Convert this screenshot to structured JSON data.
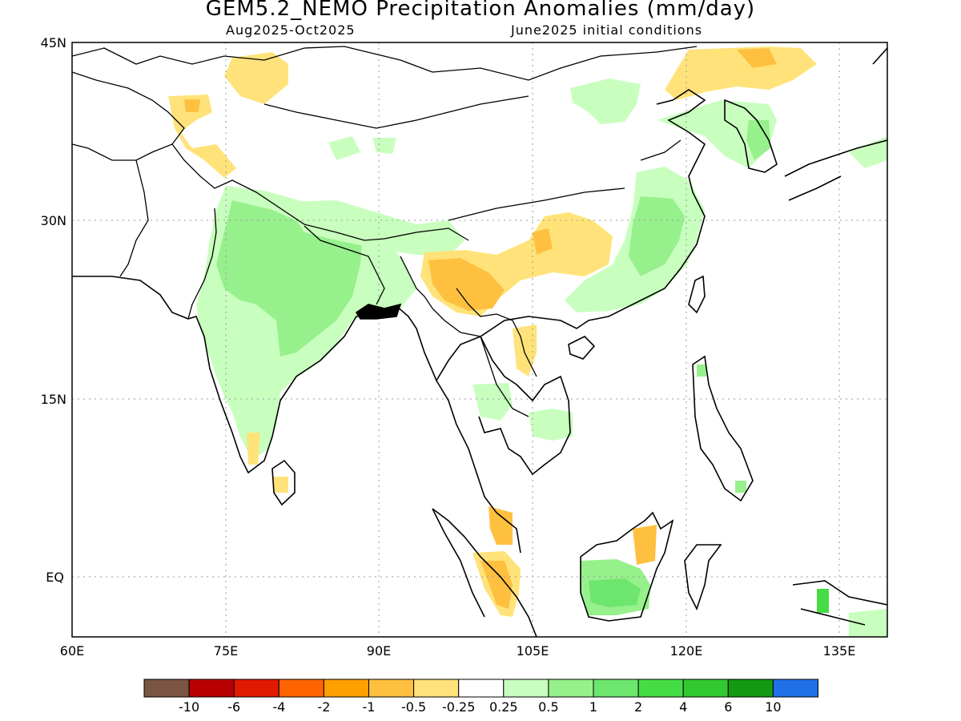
{
  "header": {
    "title": "GEM5.2_NEMO Precipitation Anomalies (mm/day)",
    "period": "Aug2025-Oct2025",
    "init": "June2025 initial conditions"
  },
  "map": {
    "lat_labels": [
      "45N",
      "30N",
      "15N",
      "EQ"
    ],
    "lon_labels": [
      "60E",
      "75E",
      "90E",
      "105E",
      "120E",
      "135E"
    ],
    "lat_range": [
      -5,
      45
    ],
    "lon_range": [
      60,
      140
    ]
  },
  "legend": {
    "labels": [
      "-10",
      "-6",
      "-4",
      "-2",
      "-1",
      "-0.5",
      "-0.25",
      "0.25",
      "0.5",
      "1",
      "2",
      "4",
      "6",
      "10"
    ],
    "colors": [
      "#7a5544",
      "#b80000",
      "#e01a00",
      "#ff6400",
      "#ffa000",
      "#ffc040",
      "#ffe37a",
      "#ffffff",
      "#c8ffbe",
      "#96f08c",
      "#6ee66e",
      "#46dc46",
      "#32c832",
      "#129b12",
      "#2070e8"
    ]
  },
  "regions": [
    {
      "name": "india-wet",
      "value": "0.5-1"
    },
    {
      "name": "india-core-wet",
      "value": "1-2"
    },
    {
      "name": "south-china-wet",
      "value": "0.5-1"
    },
    {
      "name": "borneo-wet",
      "value": "1-2"
    },
    {
      "name": "yunnan-dry",
      "value": "-1 to -0.5"
    },
    {
      "name": "sumatra-dry",
      "value": "-1 to -0.5"
    },
    {
      "name": "northeast-china-dry",
      "value": "-0.5 to -0.25"
    }
  ]
}
